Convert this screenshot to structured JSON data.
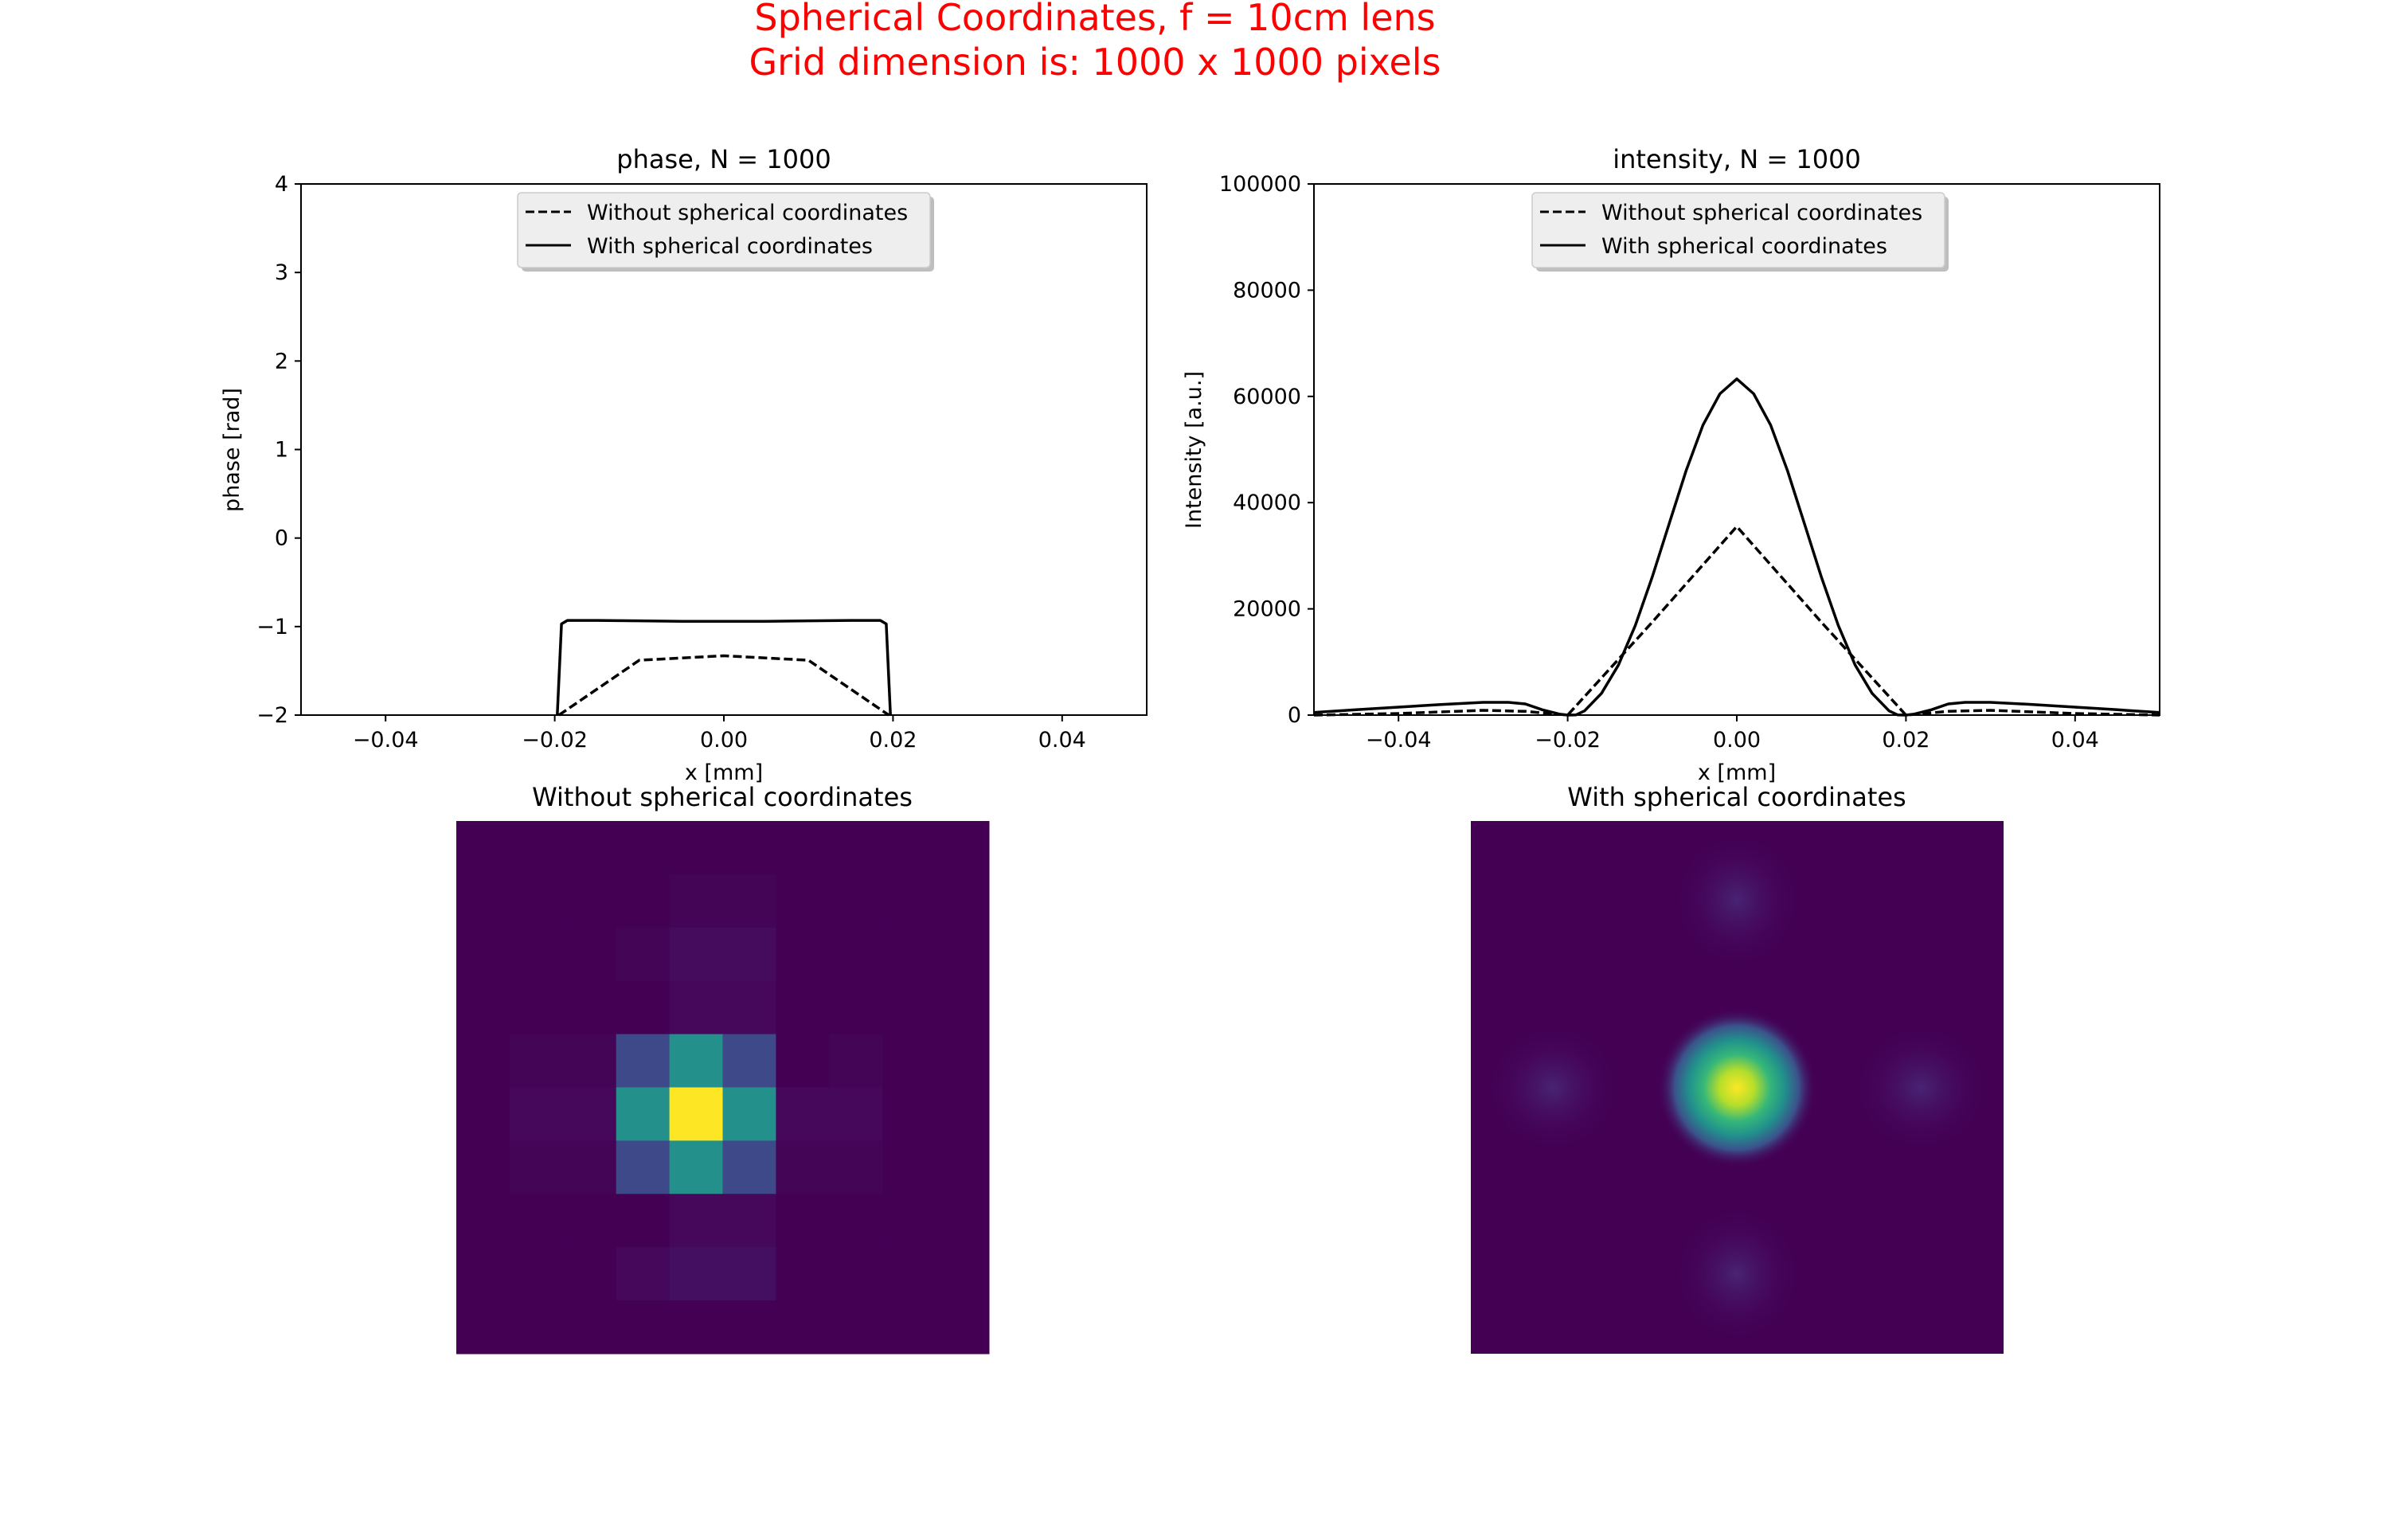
{
  "figure": {
    "suptitle_line1": "Spherical Coordinates, f = 10cm lens",
    "suptitle_line2": "Grid dimension is: 1000 x 1000 pixels",
    "suptitle_color": "#ff0000"
  },
  "chart_data": [
    {
      "type": "line",
      "title": "phase, N = 1000",
      "xlabel": "x [mm]",
      "ylabel": "phase [rad]",
      "xlim": [
        -0.05,
        0.05
      ],
      "ylim": [
        -2,
        4
      ],
      "xticks": [
        -0.04,
        -0.02,
        0.0,
        0.02,
        0.04
      ],
      "xtick_labels": [
        "−0.04",
        "−0.02",
        "0.00",
        "0.02",
        "0.04"
      ],
      "yticks": [
        -2,
        -1,
        0,
        1,
        2,
        3,
        4
      ],
      "ytick_labels": [
        "−2",
        "−1",
        "0",
        "1",
        "2",
        "3",
        "4"
      ],
      "legend_position": "upper-center",
      "series": [
        {
          "name": "Without spherical coordinates",
          "style": "dashed",
          "color": "#000000",
          "x": [
            -0.0195,
            -0.01,
            0.0,
            0.01,
            0.0195
          ],
          "y": [
            -2.0,
            -1.38,
            -1.33,
            -1.38,
            -2.0
          ]
        },
        {
          "name": "With spherical coordinates",
          "style": "solid",
          "color": "#000000",
          "x": [
            -0.0197,
            -0.0192,
            -0.0185,
            -0.015,
            -0.01,
            -0.005,
            0.0,
            0.005,
            0.01,
            0.015,
            0.0185,
            0.0192,
            0.0197
          ],
          "y": [
            -2.0,
            -0.97,
            -0.93,
            -0.93,
            -0.935,
            -0.94,
            -0.94,
            -0.94,
            -0.935,
            -0.93,
            -0.93,
            -0.97,
            -2.0
          ]
        }
      ]
    },
    {
      "type": "line",
      "title": "intensity, N = 1000",
      "xlabel": "x [mm]",
      "ylabel": "Intensity [a.u.]",
      "xlim": [
        -0.05,
        0.05
      ],
      "ylim": [
        0,
        100000
      ],
      "xticks": [
        -0.04,
        -0.02,
        0.0,
        0.02,
        0.04
      ],
      "xtick_labels": [
        "−0.04",
        "−0.02",
        "0.00",
        "0.02",
        "0.04"
      ],
      "yticks": [
        0,
        20000,
        40000,
        60000,
        80000,
        100000
      ],
      "ytick_labels": [
        "0",
        "20000",
        "40000",
        "60000",
        "80000",
        "100000"
      ],
      "legend_position": "upper-center",
      "series": [
        {
          "name": "Without spherical coordinates",
          "style": "dashed",
          "color": "#000000",
          "x": [
            -0.05,
            -0.04,
            -0.03,
            -0.025,
            -0.02,
            -0.01,
            0.0,
            0.01,
            0.02,
            0.025,
            0.03,
            0.04,
            0.05
          ],
          "y": [
            0,
            300,
            900,
            700,
            0,
            17500,
            35500,
            17500,
            0,
            700,
            900,
            300,
            0
          ]
        },
        {
          "name": "With spherical coordinates",
          "style": "solid",
          "color": "#000000",
          "x": [
            -0.05,
            -0.045,
            -0.04,
            -0.035,
            -0.03,
            -0.027,
            -0.025,
            -0.023,
            -0.021,
            -0.02,
            -0.019,
            -0.018,
            -0.016,
            -0.014,
            -0.012,
            -0.01,
            -0.008,
            -0.006,
            -0.004,
            -0.002,
            0.0,
            0.002,
            0.004,
            0.006,
            0.008,
            0.01,
            0.012,
            0.014,
            0.016,
            0.018,
            0.019,
            0.02,
            0.021,
            0.023,
            0.025,
            0.027,
            0.03,
            0.035,
            0.04,
            0.045,
            0.05
          ],
          "y": [
            500,
            1000,
            1500,
            2000,
            2400,
            2400,
            2100,
            1000,
            200,
            0,
            50,
            800,
            4100,
            9400,
            16900,
            26000,
            36000,
            46000,
            54600,
            60500,
            63300,
            60500,
            54600,
            46000,
            36000,
            26000,
            16900,
            9400,
            4100,
            800,
            50,
            0,
            200,
            1000,
            2100,
            2400,
            2400,
            2000,
            1500,
            1000,
            500
          ]
        }
      ]
    },
    {
      "type": "heatmap",
      "title": "Without spherical coordinates",
      "colormap": "viridis",
      "note": "",
      "grid_size": 10,
      "values": [
        [
          0.0,
          0.0,
          0.0,
          0.0,
          0.0,
          0.0,
          0.0,
          0.0,
          0.0,
          0.0
        ],
        [
          0.0,
          0.0,
          0.0,
          0.0,
          0.01,
          0.01,
          0.0,
          0.0,
          0.0,
          0.0
        ],
        [
          0.0,
          0.0,
          0.0,
          0.01,
          0.03,
          0.03,
          0.0,
          0.0,
          0.0,
          0.0
        ],
        [
          0.0,
          0.0,
          0.0,
          0.0,
          0.02,
          0.02,
          0.0,
          0.0,
          0.0,
          0.0
        ],
        [
          0.0,
          0.01,
          0.01,
          0.22,
          0.5,
          0.22,
          0.0,
          0.01,
          0.0,
          0.0
        ],
        [
          0.0,
          0.02,
          0.02,
          0.5,
          1.0,
          0.5,
          0.02,
          0.02,
          0.0,
          0.0
        ],
        [
          0.0,
          0.01,
          0.01,
          0.22,
          0.5,
          0.22,
          0.01,
          0.01,
          0.0,
          0.0
        ],
        [
          0.0,
          0.0,
          0.0,
          0.0,
          0.02,
          0.02,
          0.0,
          0.0,
          0.0,
          0.0
        ],
        [
          0.0,
          0.0,
          0.0,
          0.02,
          0.04,
          0.04,
          0.0,
          0.0,
          0.0,
          0.0
        ],
        [
          0.0,
          0.0,
          0.0,
          0.0,
          0.0,
          0.0,
          0.0,
          0.0,
          0.0,
          0.0
        ]
      ]
    },
    {
      "type": "heatmap",
      "title": "With spherical coordinates",
      "colormap": "viridis",
      "peak_value": 1.0,
      "side_lobe_value": 0.04
    }
  ]
}
